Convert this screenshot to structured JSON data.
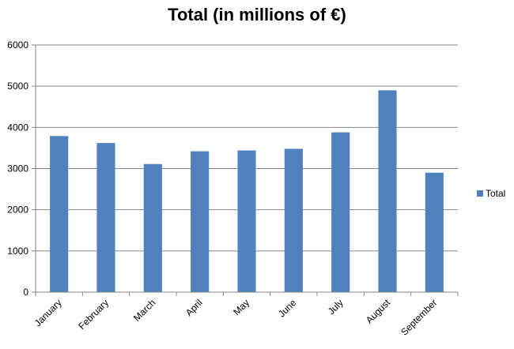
{
  "chart_data": {
    "type": "bar",
    "title": "Total (in millions of €)",
    "categories": [
      "January",
      "February",
      "March",
      "April",
      "May",
      "June",
      "July",
      "August",
      "September"
    ],
    "series": [
      {
        "name": "Total",
        "values": [
          3790,
          3620,
          3110,
          3420,
          3440,
          3480,
          3880,
          4900,
          2900
        ],
        "color": "#4F81BD"
      }
    ],
    "ylim": [
      0,
      6000
    ],
    "yticks": [
      "0",
      "1000",
      "2000",
      "3000",
      "4000",
      "5000",
      "6000"
    ],
    "grid": true,
    "legend_position": "right"
  }
}
